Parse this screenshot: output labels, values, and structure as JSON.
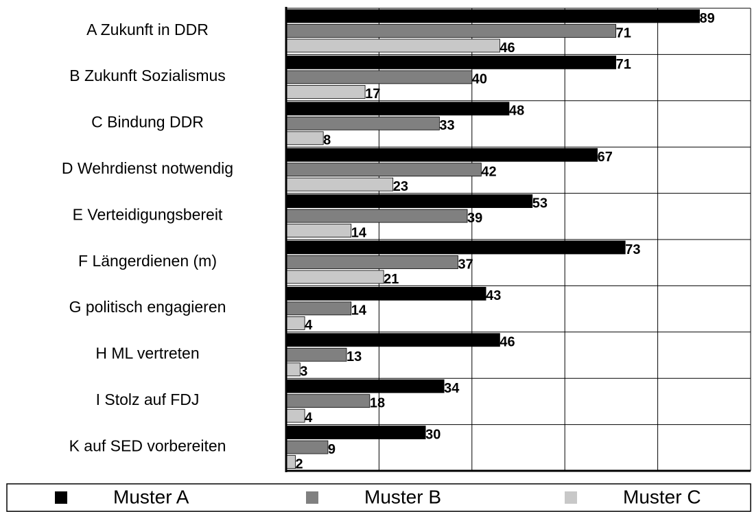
{
  "chart_data": {
    "type": "bar",
    "orientation": "horizontal",
    "categories": [
      "A Zukunft in DDR",
      "B Zukunft Sozialismus",
      "C Bindung DDR",
      "D Wehrdienst notwendig",
      "E Verteidigungsbereit",
      "F Längerdienen (m)",
      "G politisch engagieren",
      "H ML vertreten",
      "I Stolz auf FDJ",
      "K auf SED vorbereiten"
    ],
    "series": [
      {
        "name": "Muster A",
        "color": "#000000",
        "values": [
          89,
          71,
          48,
          67,
          53,
          73,
          43,
          46,
          34,
          30
        ]
      },
      {
        "name": "Muster B",
        "color": "#808080",
        "values": [
          71,
          40,
          33,
          42,
          39,
          37,
          14,
          13,
          18,
          9
        ]
      },
      {
        "name": "Muster C",
        "color": "#c8c8c8",
        "values": [
          46,
          17,
          8,
          23,
          14,
          21,
          4,
          3,
          4,
          2
        ]
      }
    ],
    "xlim": [
      0,
      100
    ],
    "xticks": [
      0,
      20,
      40,
      60,
      80,
      100
    ],
    "grid": true,
    "legend": "bottom"
  }
}
